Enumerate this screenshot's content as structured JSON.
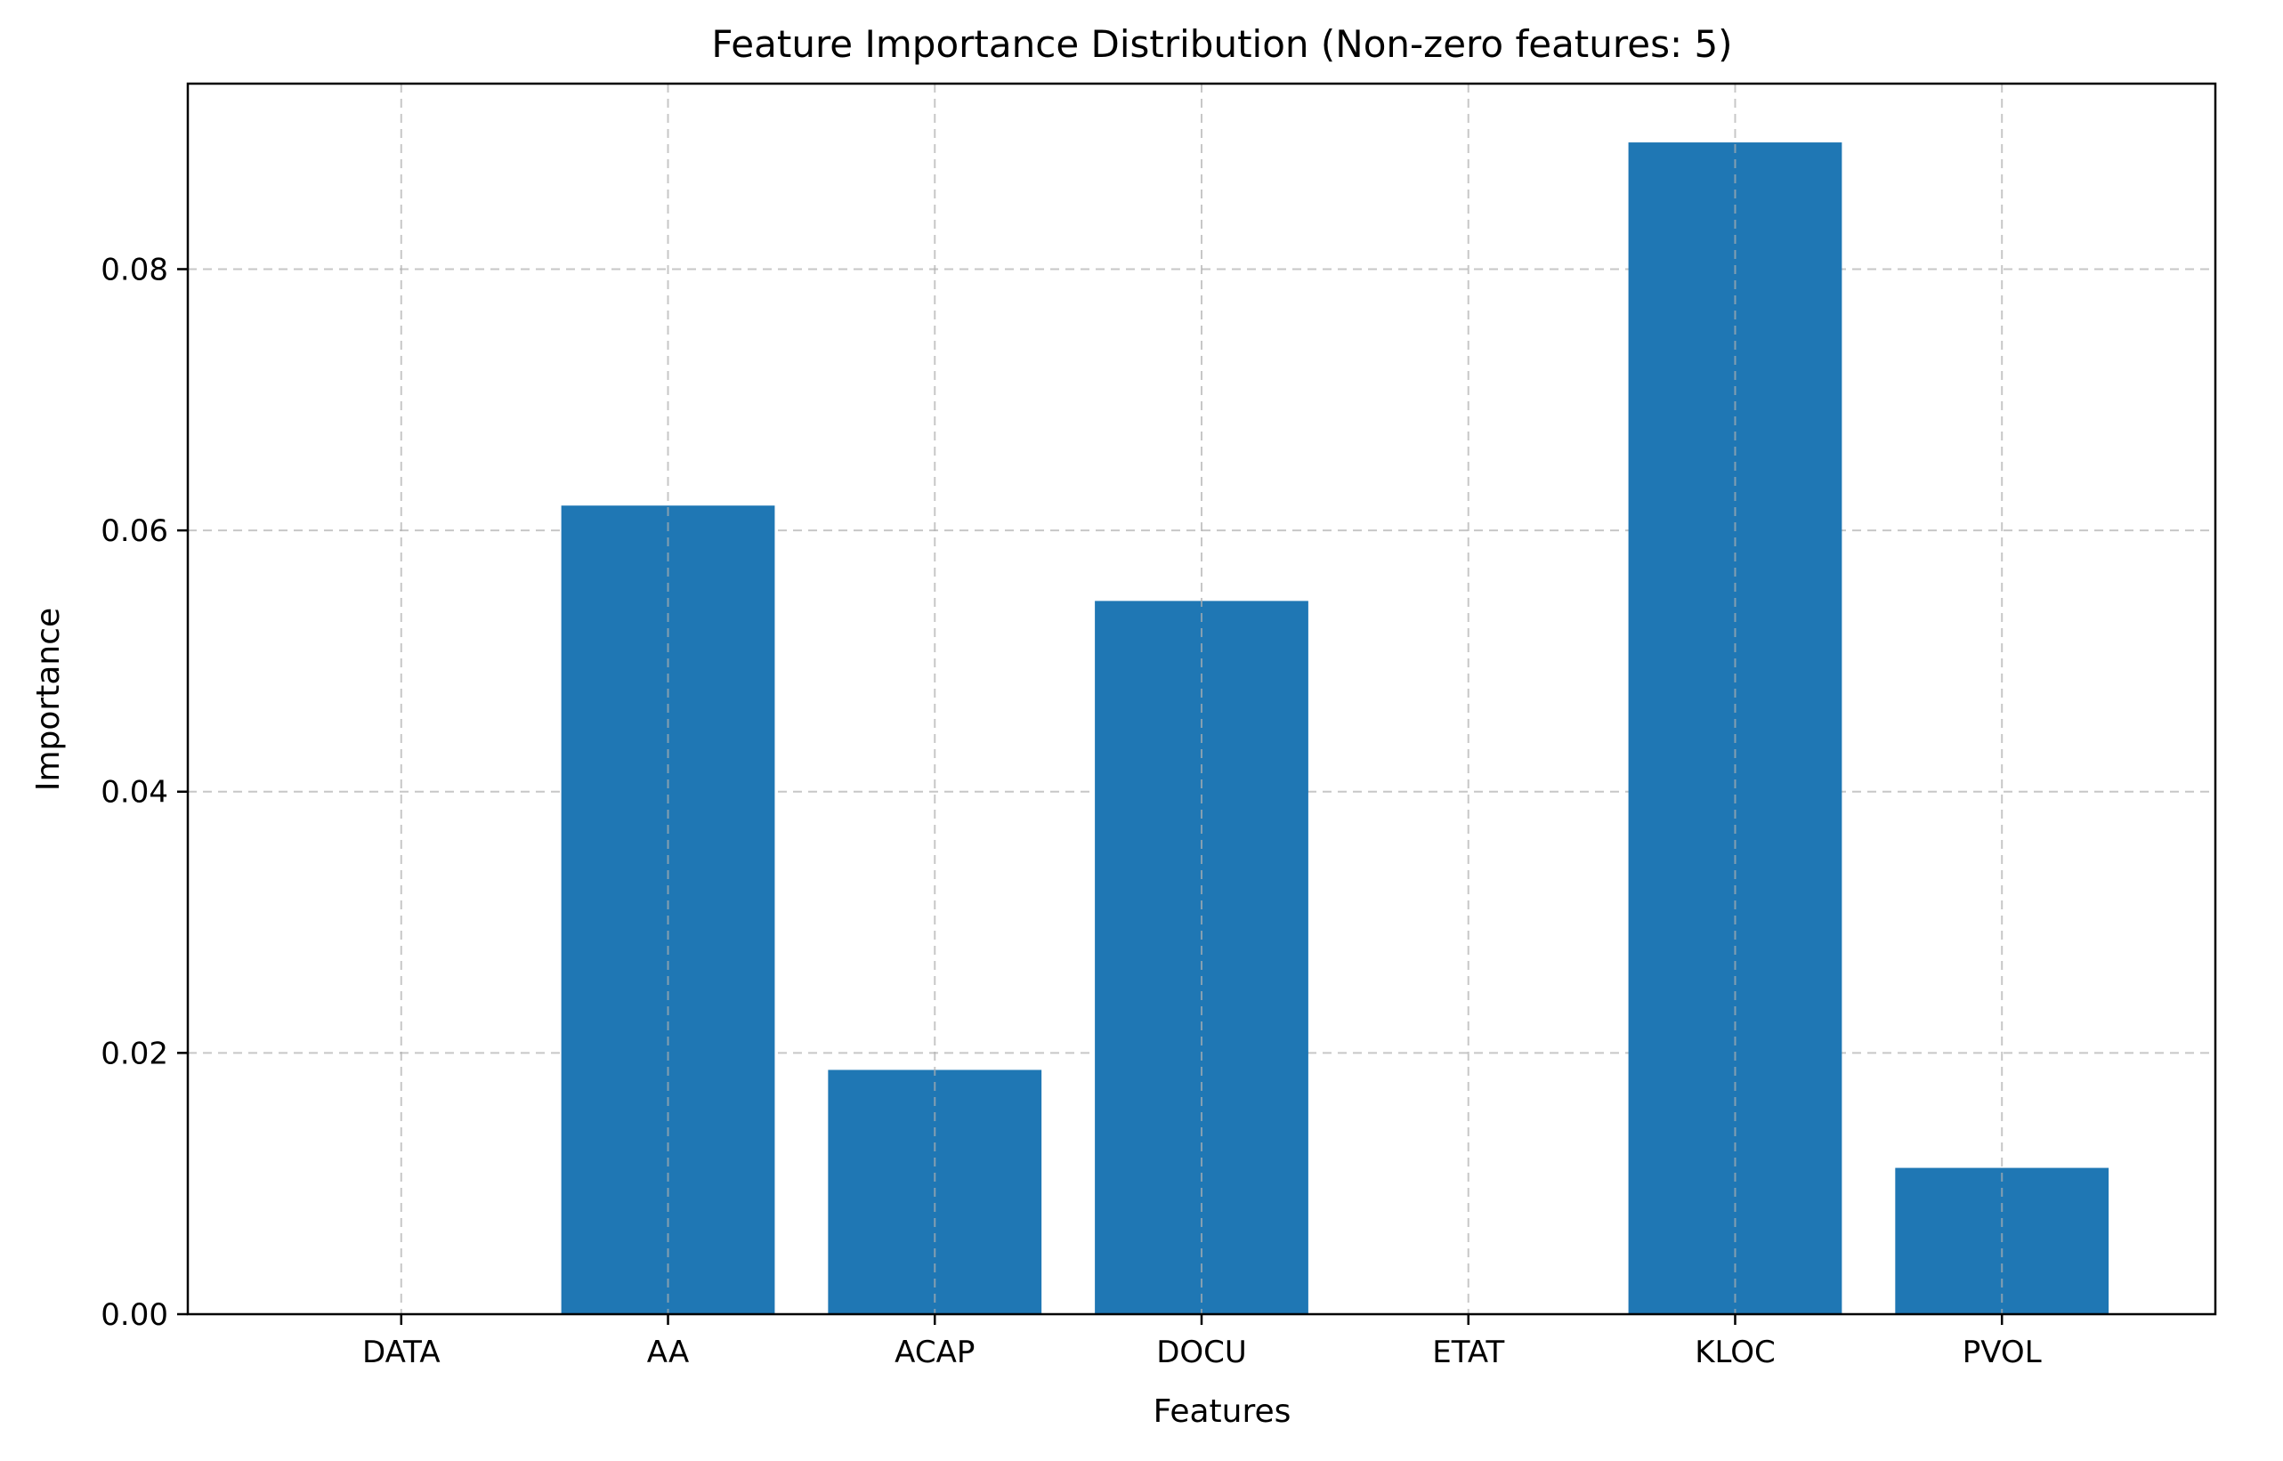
{
  "chart_data": {
    "type": "bar",
    "title": "Feature Importance Distribution (Non-zero features: 5)",
    "xlabel": "Features",
    "ylabel": "Importance",
    "categories": [
      "DATA",
      "AA",
      "ACAP",
      "DOCU",
      "ETAT",
      "KLOC",
      "PVOL"
    ],
    "values": [
      0.0,
      0.0619,
      0.0187,
      0.0546,
      0.0,
      0.0897,
      0.0112
    ],
    "ylim": [
      0,
      0.0942
    ],
    "yticks": [
      0.0,
      0.02,
      0.04,
      0.06,
      0.08
    ],
    "ytick_labels": [
      "0.00",
      "0.02",
      "0.04",
      "0.06",
      "0.08"
    ],
    "grid": true,
    "legend": "none",
    "bar_color": "#1f77b4"
  }
}
